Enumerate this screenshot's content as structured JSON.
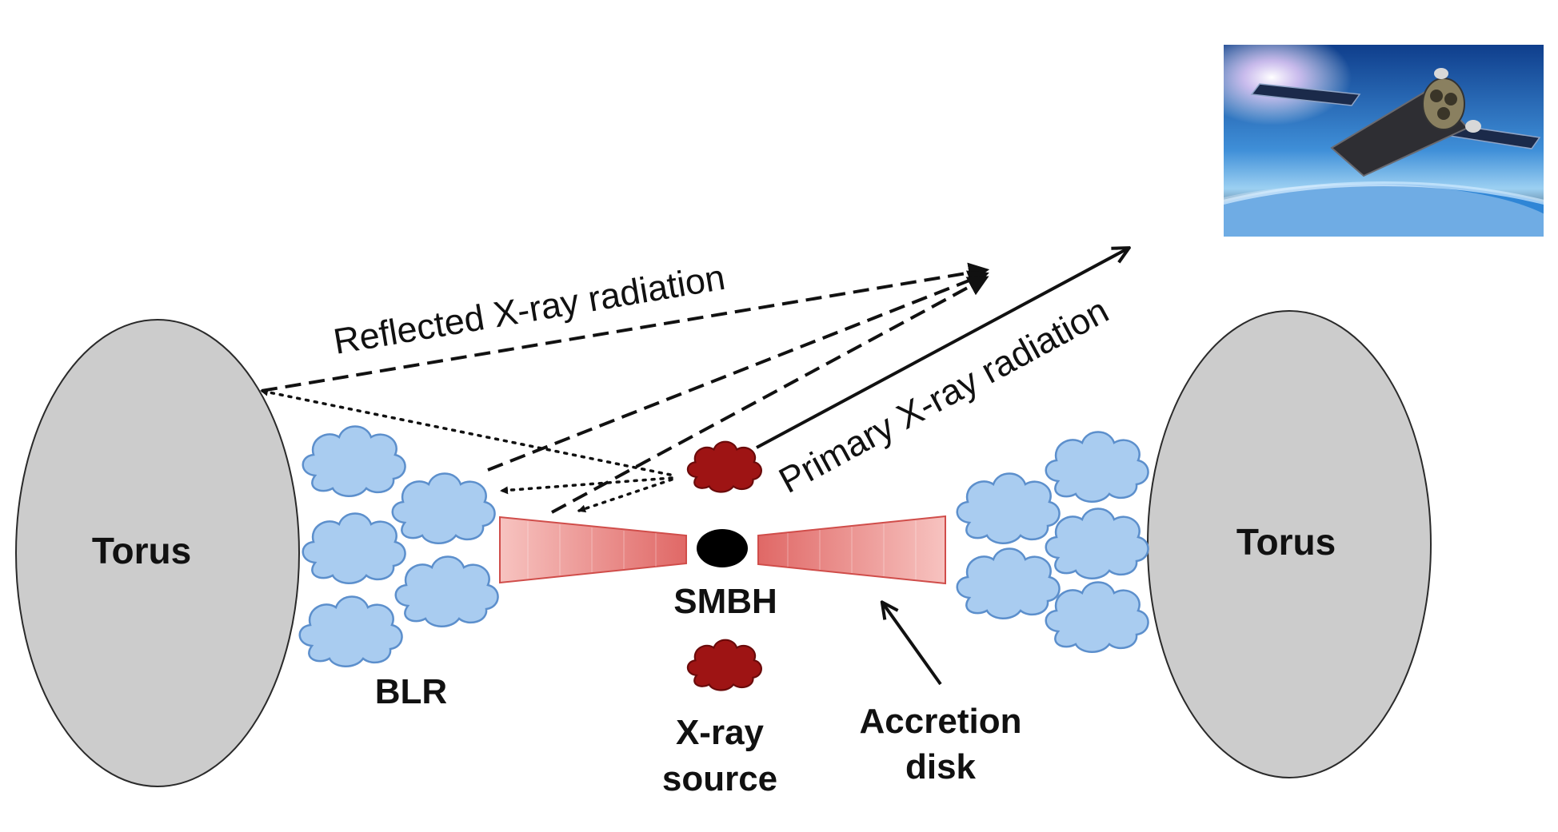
{
  "labels": {
    "torus_left": "Torus",
    "torus_right": "Torus",
    "blr": "BLR",
    "smbh": "SMBH",
    "xray_source_line1": "X-ray",
    "xray_source_line2": "source",
    "accretion_line1": "Accretion",
    "accretion_line2": "disk",
    "reflected": "Reflected X-ray radiation",
    "primary": "Primary X-ray radiation"
  },
  "colors": {
    "torus_fill": "#cccccc",
    "torus_stroke": "#2a2a2a",
    "cloud_fill": "#a9ccf0",
    "cloud_stroke": "#5c8fcc",
    "disk_light": "#f7c3c0",
    "disk_dark": "#e06866",
    "xray_source": "#9e1414",
    "smbh": "#000000",
    "arrow": "#111111",
    "space_top": "#0f3e8c",
    "earth_blue": "#2f86d6"
  },
  "icons": {
    "satellite_image": "satellite-photo-icon"
  }
}
